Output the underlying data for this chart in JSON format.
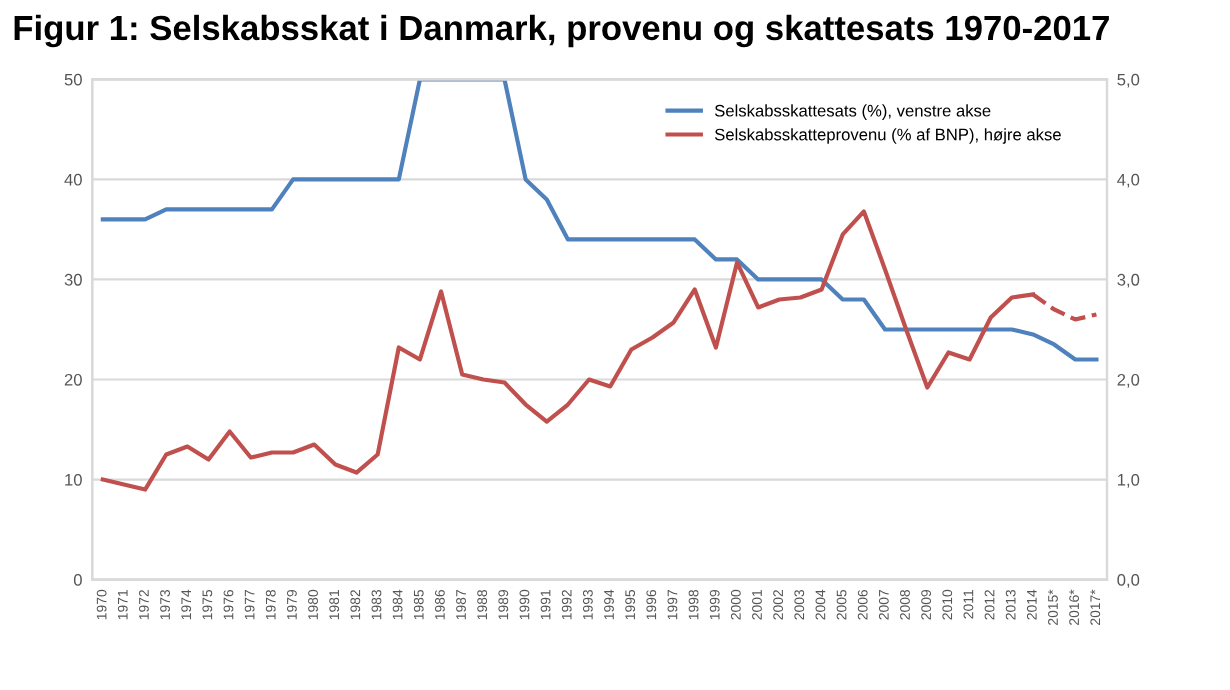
{
  "chart_data": {
    "type": "line",
    "title": "Figur 1: Selskabsskat i Danmark, provenu og skattesats 1970-2017",
    "categories": [
      "1970",
      "1971",
      "1972",
      "1973",
      "1974",
      "1975",
      "1976",
      "1977",
      "1978",
      "1979",
      "1980",
      "1981",
      "1982",
      "1983",
      "1984",
      "1985",
      "1986",
      "1987",
      "1988",
      "1989",
      "1990",
      "1991",
      "1992",
      "1993",
      "1994",
      "1995",
      "1996",
      "1997",
      "1998",
      "1999",
      "2000",
      "2001",
      "2002",
      "2003",
      "2004",
      "2005",
      "2006",
      "2007",
      "2008",
      "2009",
      "2010",
      "2011",
      "2012",
      "2013",
      "2014",
      "2015*",
      "2016*",
      "2017*"
    ],
    "series": [
      {
        "name": "Selskabsskattesats (%), venstre akse",
        "color": "#4f81bd",
        "line_style": "solid",
        "values": [
          36,
          36,
          36,
          37,
          37,
          37,
          37,
          37,
          37,
          40,
          40,
          40,
          40,
          40,
          40,
          50,
          50,
          50,
          50,
          50,
          40,
          38,
          34,
          34,
          34,
          34,
          34,
          34,
          34,
          32,
          32,
          30,
          30,
          30,
          30,
          28,
          28,
          25,
          25,
          25,
          25,
          25,
          25,
          25,
          24.5,
          23.5,
          22,
          22
        ]
      },
      {
        "name": "Selskabsskatteprovenu (% af BNP), højre akse",
        "color": "#c0504d",
        "axis": "y2",
        "line_style": "solid",
        "values": [
          1.0,
          0.95,
          0.9,
          1.25,
          1.33,
          1.2,
          1.48,
          1.22,
          1.27,
          1.27,
          1.35,
          1.15,
          1.07,
          1.25,
          2.32,
          2.2,
          2.88,
          2.05,
          2.0,
          1.97,
          1.75,
          1.58,
          1.75,
          2.0,
          1.93,
          2.3,
          2.42,
          2.57,
          2.9,
          2.32,
          3.17,
          2.72,
          2.8,
          2.82,
          2.9,
          3.45,
          3.68,
          3.1,
          2.5,
          1.92,
          2.27,
          2.2,
          2.62,
          2.82,
          2.85,
          null,
          null,
          null
        ]
      },
      {
        "color": "#c0504d",
        "axis": "y2",
        "line_style": "dashed",
        "values": [
          null,
          null,
          null,
          null,
          null,
          null,
          null,
          null,
          null,
          null,
          null,
          null,
          null,
          null,
          null,
          null,
          null,
          null,
          null,
          null,
          null,
          null,
          null,
          null,
          null,
          null,
          null,
          null,
          null,
          null,
          null,
          null,
          null,
          null,
          null,
          null,
          null,
          null,
          null,
          null,
          null,
          null,
          null,
          null,
          2.85,
          2.7,
          2.6,
          2.65
        ]
      }
    ],
    "ylim": [
      0,
      50
    ],
    "yticks": [
      0,
      10,
      20,
      30,
      40,
      50
    ],
    "y2lim": [
      0,
      5
    ],
    "y2ticks": [
      {
        "value": 0,
        "label": "0,0"
      },
      {
        "value": 1,
        "label": "1,0"
      },
      {
        "value": 2,
        "label": "2,0"
      },
      {
        "value": 3,
        "label": "3,0"
      },
      {
        "value": 4,
        "label": "4,0"
      },
      {
        "value": 5,
        "label": "5,0"
      }
    ],
    "grid": "y",
    "legend": "top right",
    "marker": "none"
  }
}
